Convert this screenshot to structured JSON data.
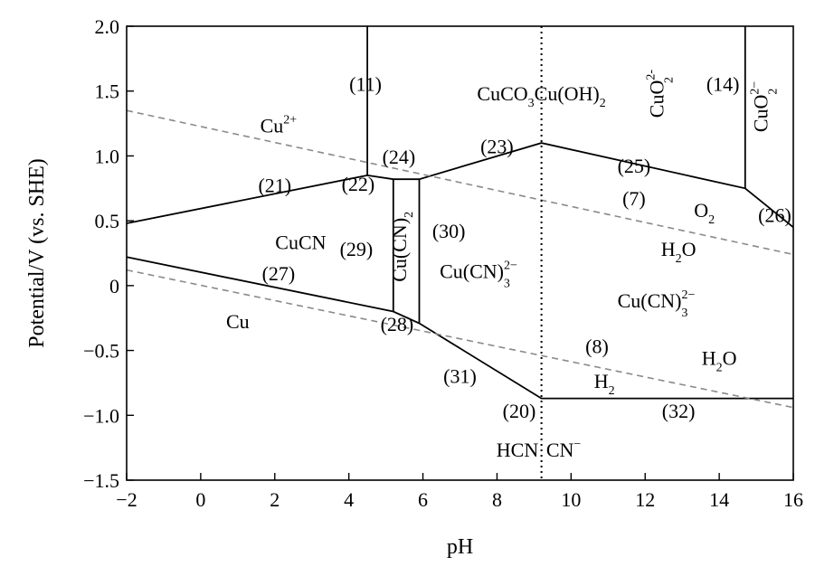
{
  "chart_data": {
    "type": "line",
    "title": "",
    "xlabel": "pH",
    "ylabel": "Potential/V (vs. SHE)",
    "xlim": [
      -2,
      16
    ],
    "ylim": [
      -1.5,
      2.0
    ],
    "x_ticks": [
      -2,
      0,
      2,
      4,
      6,
      8,
      10,
      12,
      14,
      16
    ],
    "y_ticks": [
      2.0,
      1.5,
      1.0,
      0.5,
      0,
      -0.5,
      -1.0,
      -1.5
    ],
    "x_tick_labels": [
      "−2",
      "0",
      "2",
      "4",
      "6",
      "8",
      "10",
      "12",
      "14",
      "16"
    ],
    "y_tick_labels": [
      "2.0",
      "1.5",
      "1.0",
      "0.5",
      "0",
      "−0.5",
      "−1.0",
      "−1.5"
    ],
    "grid": false,
    "boundaries": [
      {
        "style": "solid",
        "points": [
          [
            -2,
            0.48
          ],
          [
            4.5,
            0.85
          ],
          [
            5.2,
            0.82
          ],
          [
            5.9,
            0.82
          ],
          [
            9.2,
            1.1
          ],
          [
            14.7,
            0.75
          ],
          [
            16,
            0.45
          ]
        ]
      },
      {
        "style": "solid",
        "points": [
          [
            4.5,
            2.0
          ],
          [
            4.5,
            0.85
          ]
        ]
      },
      {
        "style": "solid",
        "points": [
          [
            14.7,
            2.0
          ],
          [
            14.7,
            0.75
          ]
        ]
      },
      {
        "style": "solid",
        "points": [
          [
            5.2,
            0.82
          ],
          [
            5.2,
            -0.2
          ]
        ]
      },
      {
        "style": "solid",
        "points": [
          [
            5.9,
            0.82
          ],
          [
            5.9,
            -0.29
          ]
        ]
      },
      {
        "style": "solid",
        "points": [
          [
            -2,
            0.22
          ],
          [
            5.2,
            -0.2
          ],
          [
            5.9,
            -0.29
          ],
          [
            9.2,
            -0.87
          ],
          [
            16,
            -0.87
          ]
        ]
      },
      {
        "style": "dashed",
        "points": [
          [
            -2,
            1.35
          ],
          [
            16,
            0.24
          ]
        ]
      },
      {
        "style": "dashed",
        "points": [
          [
            -2,
            0.12
          ],
          [
            16,
            -0.94
          ]
        ]
      },
      {
        "style": "dotted",
        "points": [
          [
            9.2,
            2.0
          ],
          [
            9.2,
            -1.5
          ]
        ]
      }
    ],
    "species_labels": [
      {
        "main": "Cu",
        "sup": "2+",
        "x": 2.1,
        "y": 1.18
      },
      {
        "main": "CuCN",
        "x": 2.7,
        "y": 0.28
      },
      {
        "main": "Cu",
        "x": 1.0,
        "y": -0.33
      },
      {
        "main": "CuCO",
        "sub": "3",
        "after": "Cu(OH)",
        "sub2": "2",
        "x": 9.2,
        "y": 1.43
      },
      {
        "main": "Cu(CN)",
        "sup": "2−",
        "sub": "3",
        "x": 7.5,
        "y": 0.06
      },
      {
        "main": "Cu(CN)",
        "sup": "2−",
        "sub": "3",
        "x": 12.3,
        "y": -0.17
      },
      {
        "main": "O",
        "sub": "2",
        "x": 13.6,
        "y": 0.53
      },
      {
        "main": "H",
        "sub": "2",
        "after": "O",
        "x": 12.9,
        "y": 0.23
      },
      {
        "main": "H",
        "sub": "2",
        "after": "O",
        "x": 14.0,
        "y": -0.61
      },
      {
        "main": "H",
        "sub": "2",
        "x": 10.9,
        "y": -0.79
      },
      {
        "main": "HCN",
        "x": 8.55,
        "y": -1.32
      },
      {
        "main": "CN",
        "sup": "−",
        "x": 9.8,
        "y": -1.32
      }
    ],
    "rotated_labels": [
      {
        "main": "Cu(CN)",
        "sub": "2",
        "x": 5.55,
        "y": 0.3
      },
      {
        "main": "CuO",
        "sup": "2-",
        "sub": "2",
        "x": 12.5,
        "y": 1.48
      },
      {
        "main": "CuO",
        "sup": "2−",
        "sub": "2",
        "x": 15.3,
        "y": 1.38
      }
    ],
    "equation_labels": [
      {
        "text": "(11)",
        "x": 4.45,
        "y": 1.5
      },
      {
        "text": "(14)",
        "x": 14.1,
        "y": 1.5
      },
      {
        "text": "(23)",
        "x": 8.0,
        "y": 1.02
      },
      {
        "text": "(24)",
        "x": 5.35,
        "y": 0.94
      },
      {
        "text": "(25)",
        "x": 11.7,
        "y": 0.87
      },
      {
        "text": "(21)",
        "x": 2.0,
        "y": 0.72
      },
      {
        "text": "(22)",
        "x": 4.25,
        "y": 0.73
      },
      {
        "text": "(7)",
        "x": 11.7,
        "y": 0.62
      },
      {
        "text": "(26)",
        "x": 15.5,
        "y": 0.49
      },
      {
        "text": "(30)",
        "x": 6.7,
        "y": 0.37
      },
      {
        "text": "(29)",
        "x": 4.2,
        "y": 0.23
      },
      {
        "text": "(27)",
        "x": 2.1,
        "y": 0.04
      },
      {
        "text": "(28)",
        "x": 5.3,
        "y": -0.35
      },
      {
        "text": "(8)",
        "x": 10.7,
        "y": -0.52
      },
      {
        "text": "(31)",
        "x": 7.0,
        "y": -0.75
      },
      {
        "text": "(20)",
        "x": 8.6,
        "y": -1.02
      },
      {
        "text": "(32)",
        "x": 12.9,
        "y": -1.02
      }
    ]
  }
}
